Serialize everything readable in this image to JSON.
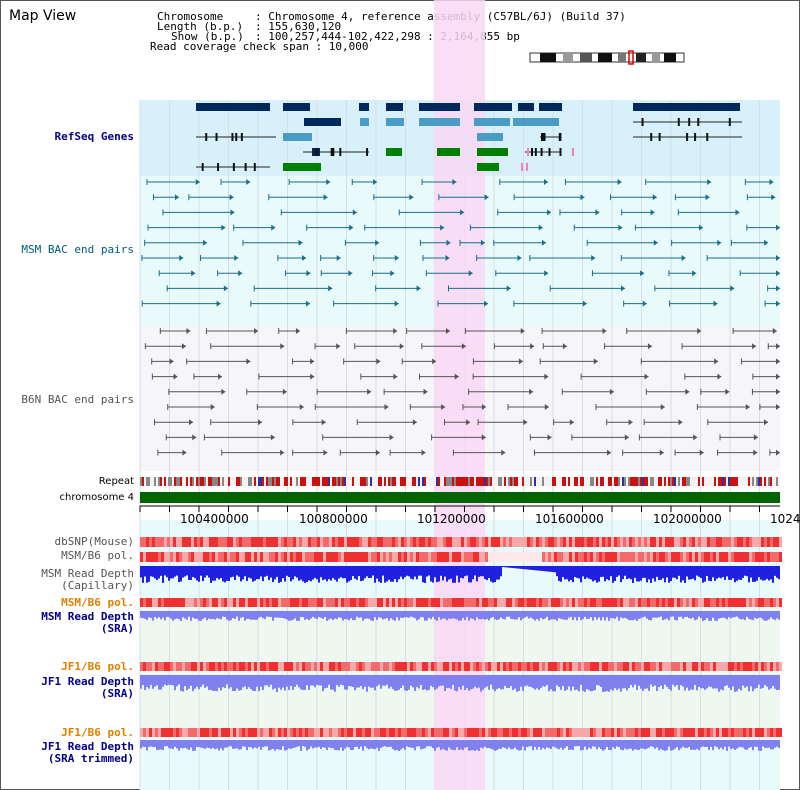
{
  "title": "Map View",
  "info": {
    "chromosome_key": "Chromosome",
    "chromosome_val": ": Chromosome 4, reference assembly (C57BL/6J) (Build 37)",
    "length_key": "Length (b.p.)",
    "length_val": ": 155,630,120",
    "show_key": "Show (b.p.)",
    "show_val": ": 100,257,444-102,422,298 : 2,164,855 bp",
    "coverage": "Read coverage check span : 10,000"
  },
  "tracks": {
    "refseq": "RefSeq Genes",
    "msm_bac": "MSM BAC end pairs",
    "b6n_bac": "B6N BAC end pairs",
    "repeat": "Repeat",
    "chromosome": "chromosome 4",
    "dbsnp": "dbSNP(Mouse)",
    "msm_b6_pol": "MSM/B6 pol.",
    "msm_depth_cap_1": "MSM Read Depth",
    "msm_depth_cap_2": "(Capillary)",
    "msm_b6_pol_sra": "MSM/B6 pol.",
    "msm_depth_sra_1": "MSM Read Depth",
    "msm_depth_sra_2": "(SRA)",
    "jf1_b6_pol": "JF1/B6 pol.",
    "jf1_depth_1": "JF1 Read Depth",
    "jf1_depth_2": "(SRA)",
    "jf1_b6_pol_t": "JF1/B6 pol.",
    "jf1_trim_1": "JF1 Read Depth",
    "jf1_trim_2": "(SRA trimmed)"
  },
  "axis": {
    "ticks": [
      "100400000",
      "100800000",
      "101200000",
      "101600000",
      "102000000",
      "1024"
    ]
  },
  "colors": {
    "refseq_bg": "#d8f0fa",
    "track_bg": "#e8fafa",
    "highlight": "#f9d8f4",
    "gene_dark": "#00285a",
    "gene_light": "#4a9cc4",
    "gene_green": "#008000",
    "msm_pair": "#1a6e8a",
    "b6n_pair": "#555555",
    "chromosome": "#006400",
    "depth_blue": "#2020e0",
    "depth_light": "#8080ee"
  }
}
